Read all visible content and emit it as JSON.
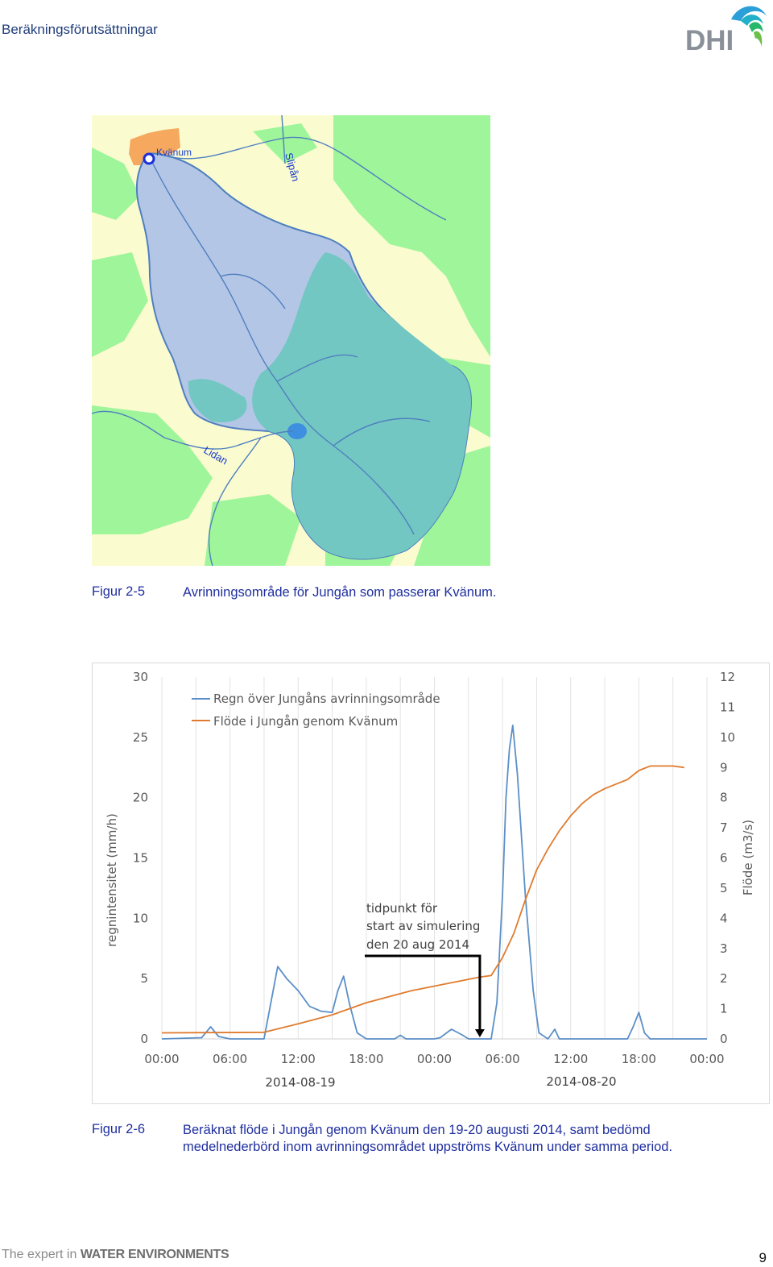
{
  "header": {
    "title": "Beräkningsförutsättningar",
    "logo_text": "DHI"
  },
  "map": {
    "labels": {
      "town": "Kvänum",
      "river_north": "Slipån",
      "river_south": "Lidan"
    },
    "colors": {
      "catchment_light": "#b4c6e6",
      "catchment_dark": "#72c7c2",
      "forest": "#9ff59a",
      "open_land": "#fafcd0",
      "town": "#f6a85e",
      "river": "#4f7fbf"
    }
  },
  "figure_2_5": {
    "number": "Figur 2-5",
    "text": "Avrinningsområde för Jungån som passerar Kvänum."
  },
  "chart_data": {
    "type": "line",
    "title": "",
    "xlabel_dates": [
      "2014-08-19",
      "2014-08-20"
    ],
    "x_tick_labels": [
      "00:00",
      "06:00",
      "12:00",
      "18:00",
      "00:00",
      "06:00",
      "12:00",
      "18:00",
      "00:00"
    ],
    "x_hours": [
      0,
      6,
      12,
      18,
      24,
      30,
      36,
      42,
      48
    ],
    "xlim": [
      0,
      48
    ],
    "ylabel_left": "regnintensitet (mm/h)",
    "ylabel_right": "Flöde (m3/s)",
    "ylim_left": [
      0,
      30
    ],
    "ylim_right": [
      0,
      12
    ],
    "y_ticks_left": [
      "0",
      "5",
      "10",
      "15",
      "20",
      "25",
      "30"
    ],
    "y_ticks_right": [
      "0",
      "1",
      "2",
      "3",
      "4",
      "5",
      "6",
      "7",
      "8",
      "9",
      "10",
      "11",
      "12"
    ],
    "grid": "vertical",
    "legend_position": "top-left",
    "series": [
      {
        "name": "Regn över Jungåns avrinningsområde",
        "axis": "left",
        "color": "#5b8fc7",
        "points": [
          [
            0,
            0
          ],
          [
            3.5,
            0.1
          ],
          [
            4.3,
            1
          ],
          [
            5,
            0.2
          ],
          [
            6,
            0
          ],
          [
            9,
            0
          ],
          [
            9.6,
            3
          ],
          [
            10.2,
            6
          ],
          [
            11,
            5
          ],
          [
            12,
            4
          ],
          [
            13,
            2.7
          ],
          [
            14,
            2.3
          ],
          [
            15,
            2.2
          ],
          [
            15.5,
            4
          ],
          [
            16,
            5.2
          ],
          [
            16.5,
            3
          ],
          [
            17.2,
            0.5
          ],
          [
            18,
            0
          ],
          [
            20.5,
            0
          ],
          [
            21,
            0.3
          ],
          [
            21.5,
            0
          ],
          [
            24,
            0
          ],
          [
            24.5,
            0.1
          ],
          [
            25.5,
            0.8
          ],
          [
            26.5,
            0.3
          ],
          [
            27,
            0
          ],
          [
            29,
            0
          ],
          [
            29.5,
            3
          ],
          [
            30,
            12
          ],
          [
            30.3,
            20
          ],
          [
            30.6,
            24
          ],
          [
            30.9,
            26
          ],
          [
            31.3,
            22
          ],
          [
            32,
            12
          ],
          [
            32.7,
            4
          ],
          [
            33.2,
            0.5
          ],
          [
            34,
            0
          ],
          [
            34.6,
            0.8
          ],
          [
            35,
            0
          ],
          [
            41,
            0
          ],
          [
            41.5,
            1
          ],
          [
            42,
            2.2
          ],
          [
            42.5,
            0.5
          ],
          [
            43,
            0
          ],
          [
            48,
            0
          ]
        ]
      },
      {
        "name": "Flöde i Jungån genom Kvänum",
        "axis": "right",
        "color": "#e07b2e",
        "points": [
          [
            0,
            0.2
          ],
          [
            9,
            0.22
          ],
          [
            12,
            0.5
          ],
          [
            15,
            0.8
          ],
          [
            18,
            1.2
          ],
          [
            22,
            1.6
          ],
          [
            26,
            1.9
          ],
          [
            28,
            2.05
          ],
          [
            29,
            2.1
          ],
          [
            30,
            2.7
          ],
          [
            31,
            3.5
          ],
          [
            32,
            4.6
          ],
          [
            33,
            5.6
          ],
          [
            34,
            6.3
          ],
          [
            35,
            6.9
          ],
          [
            36,
            7.4
          ],
          [
            37,
            7.8
          ],
          [
            38,
            8.1
          ],
          [
            39,
            8.3
          ],
          [
            40,
            8.45
          ],
          [
            41,
            8.6
          ],
          [
            42,
            8.9
          ],
          [
            43,
            9.05
          ],
          [
            44,
            9.05
          ],
          [
            45,
            9.05
          ],
          [
            46,
            9.0
          ]
        ]
      }
    ],
    "annotation": {
      "lines": [
        "tidpunkt för",
        "start av simulering",
        "den 20 aug 2014"
      ],
      "arrow_hour": 28
    }
  },
  "figure_2_6": {
    "number": "Figur 2-6",
    "text": "Beräknat flöde i Jungån genom Kvänum den 19-20 augusti 2014, samt bedömd medelnederbörd inom avrinningsområdet uppströms Kvänum under samma period."
  },
  "footer": {
    "brand_prefix": "The expert in ",
    "brand_bold": "WATER ENVIRONMENTS",
    "page_number": "9"
  }
}
